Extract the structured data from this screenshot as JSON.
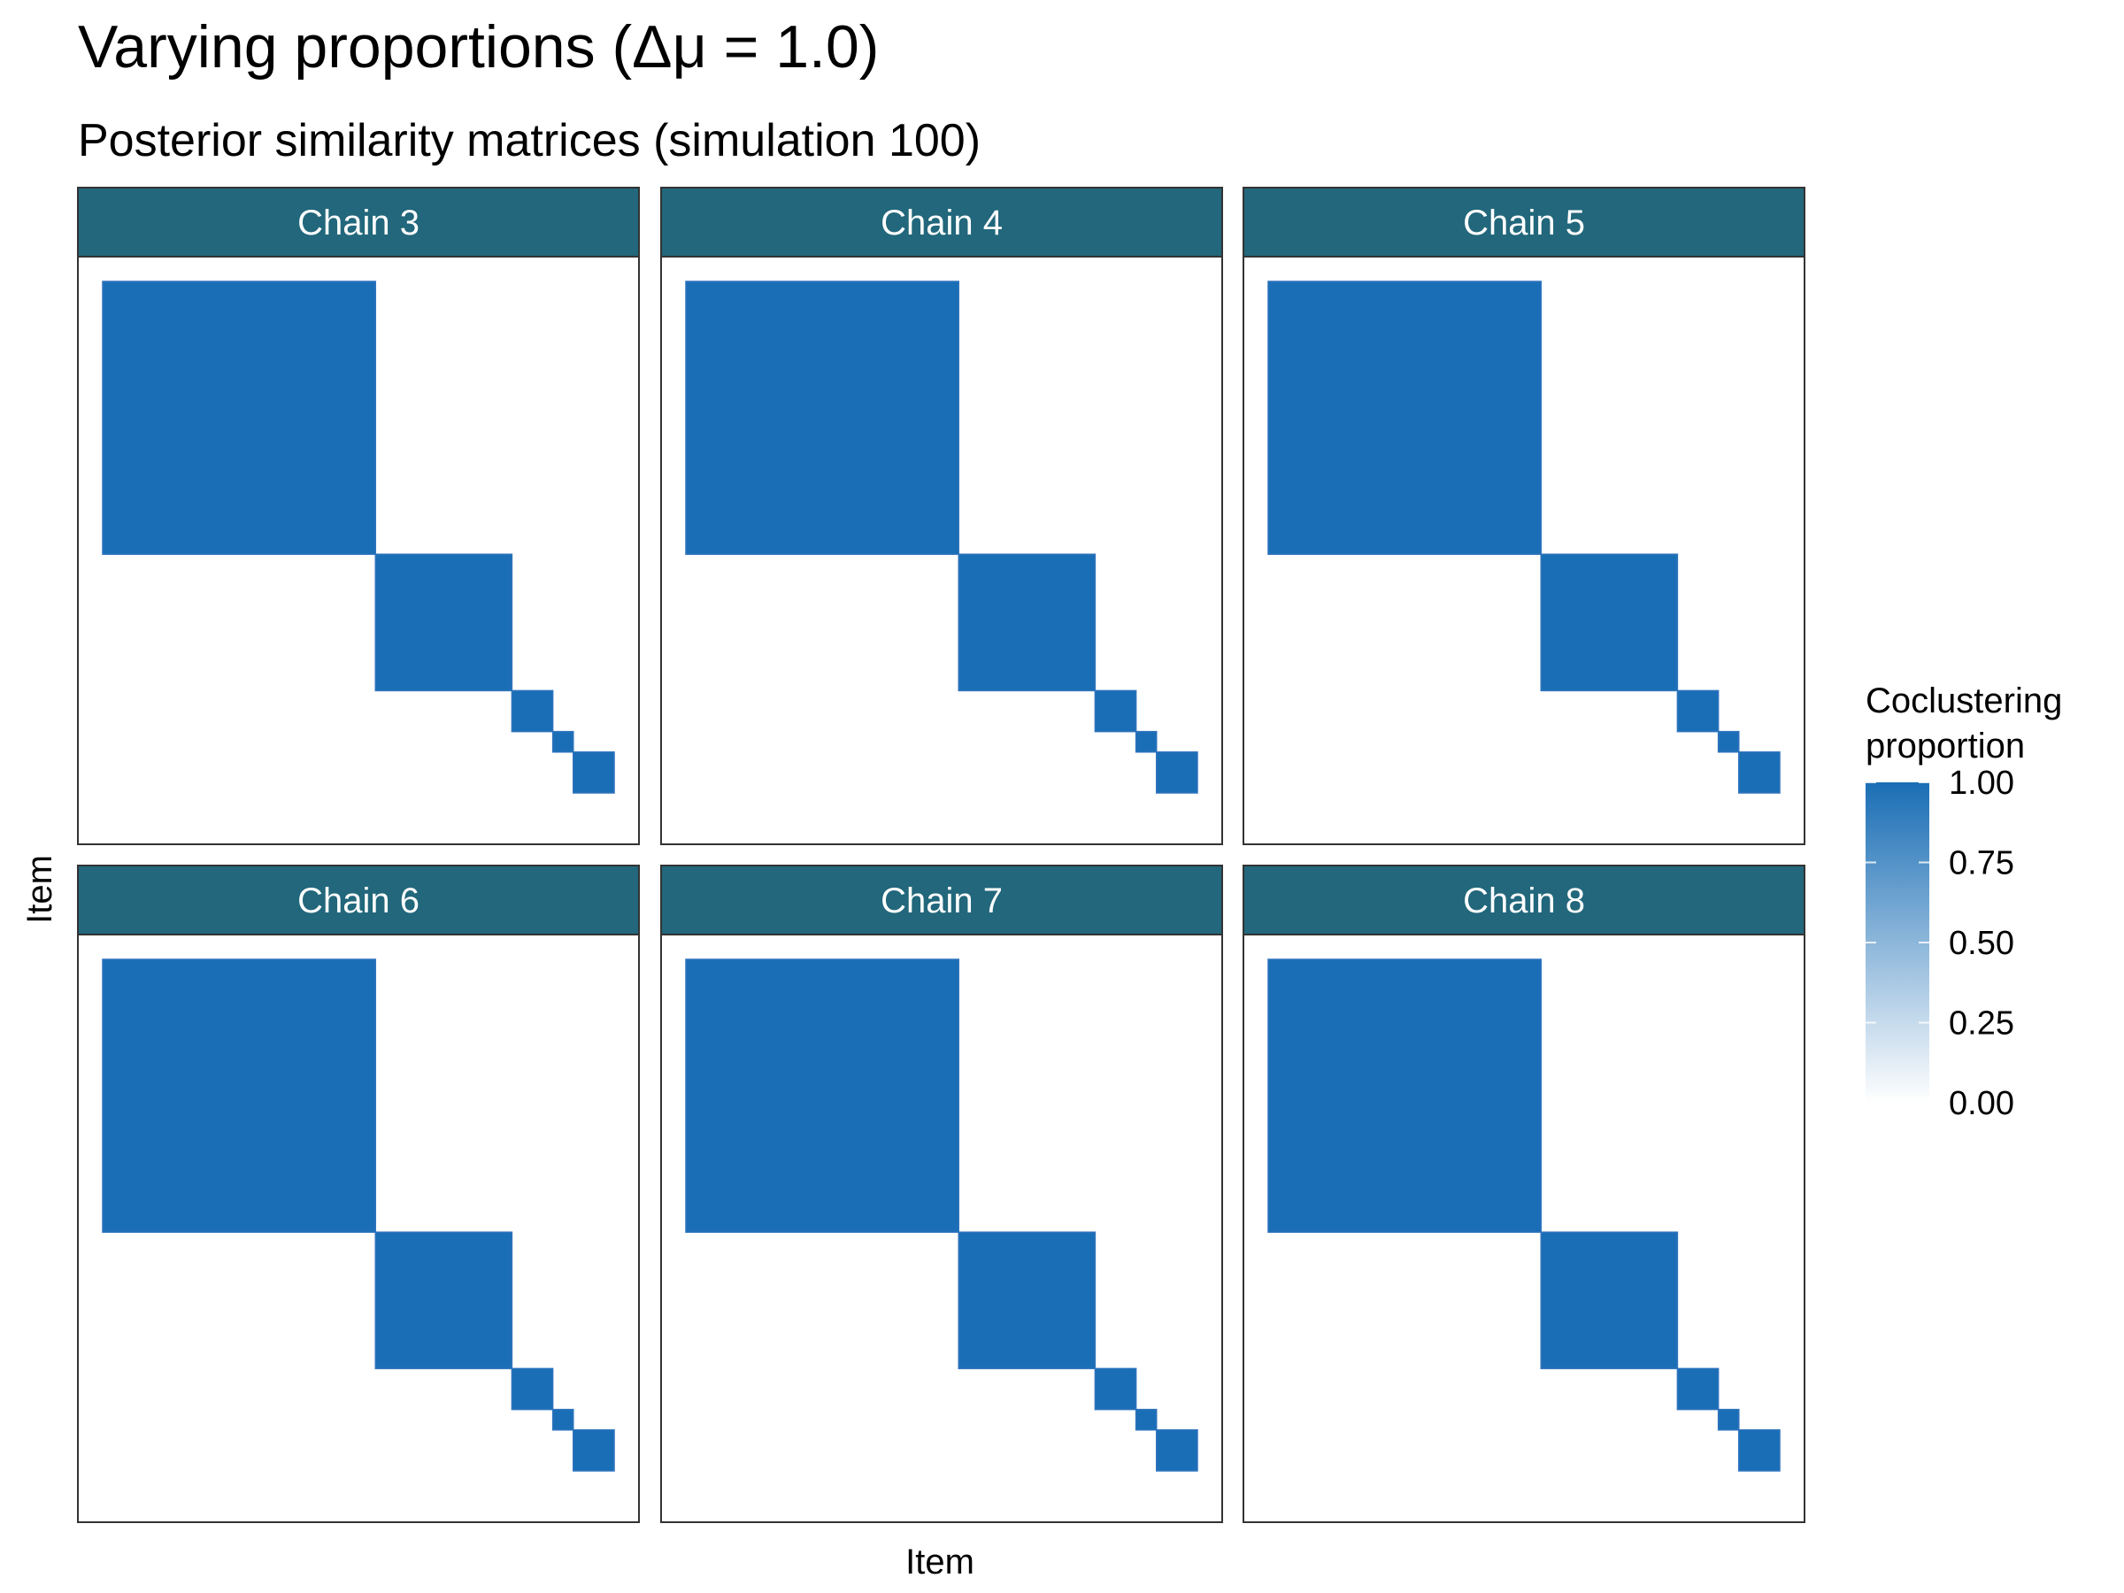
{
  "title": "Varying proportions (Δμ = 1.0)",
  "subtitle": "Posterior similarity matrices (simulation 100)",
  "colors": {
    "strip_fill": "#22677b",
    "strip_text": "#ffffff",
    "tile_high": "#1a6eb5",
    "tile_low": "#ffffff",
    "panel_border": "#333333"
  },
  "chart_data": {
    "type": "heatmap",
    "xlabel": "Item",
    "ylabel": "Item",
    "panels": [
      {
        "label": "Chain 3",
        "blocks": [
          {
            "size": 40,
            "value": 1.0
          },
          {
            "size": 20,
            "value": 1.0
          },
          {
            "size": 6,
            "value": 1.0
          },
          {
            "size": 3,
            "value": 1.0
          },
          {
            "size": 6,
            "value": 1.0
          }
        ]
      },
      {
        "label": "Chain 4",
        "blocks": [
          {
            "size": 40,
            "value": 1.0
          },
          {
            "size": 20,
            "value": 1.0
          },
          {
            "size": 6,
            "value": 1.0
          },
          {
            "size": 3,
            "value": 1.0
          },
          {
            "size": 6,
            "value": 1.0
          }
        ]
      },
      {
        "label": "Chain 5",
        "blocks": [
          {
            "size": 40,
            "value": 1.0
          },
          {
            "size": 20,
            "value": 1.0
          },
          {
            "size": 6,
            "value": 1.0
          },
          {
            "size": 3,
            "value": 1.0
          },
          {
            "size": 6,
            "value": 1.0
          }
        ]
      },
      {
        "label": "Chain 6",
        "blocks": [
          {
            "size": 40,
            "value": 1.0
          },
          {
            "size": 20,
            "value": 1.0
          },
          {
            "size": 6,
            "value": 1.0
          },
          {
            "size": 3,
            "value": 1.0
          },
          {
            "size": 6,
            "value": 1.0
          }
        ]
      },
      {
        "label": "Chain 7",
        "blocks": [
          {
            "size": 40,
            "value": 1.0
          },
          {
            "size": 20,
            "value": 1.0
          },
          {
            "size": 6,
            "value": 1.0
          },
          {
            "size": 3,
            "value": 1.0
          },
          {
            "size": 6,
            "value": 1.0
          }
        ]
      },
      {
        "label": "Chain 8",
        "blocks": [
          {
            "size": 40,
            "value": 1.0
          },
          {
            "size": 20,
            "value": 1.0
          },
          {
            "size": 6,
            "value": 1.0
          },
          {
            "size": 3,
            "value": 1.0
          },
          {
            "size": 6,
            "value": 1.0
          }
        ]
      }
    ],
    "legend": {
      "title_line1": "Coclustering",
      "title_line2": "proportion",
      "range": [
        0,
        1
      ],
      "ticks": [
        1.0,
        0.75,
        0.5,
        0.25,
        0.0
      ],
      "tick_labels": [
        "1.00",
        "0.75",
        "0.50",
        "0.25",
        "0.00"
      ],
      "placement": "right"
    }
  }
}
